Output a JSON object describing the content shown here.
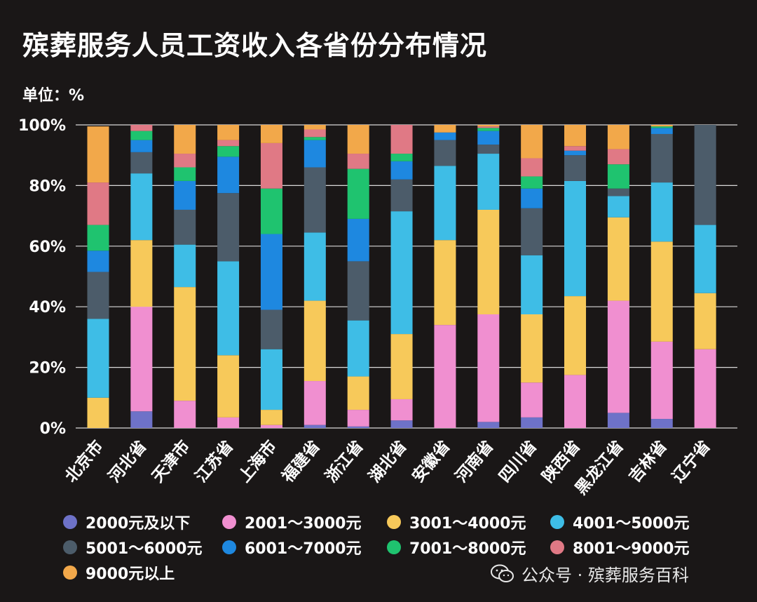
{
  "title": "殡葬服务人员工资收入各省份分布情况",
  "unit_label": "单位：%",
  "watermark": "公众号 · 殡葬服务百科",
  "chart_data": {
    "type": "bar",
    "stacked": true,
    "title": "殡葬服务人员工资收入各省份分布情况",
    "ylim": [
      0,
      100
    ],
    "yticks": [
      "0%",
      "20%",
      "40%",
      "60%",
      "80%",
      "100%"
    ],
    "grid": true,
    "legend_position": "bottom",
    "categories": [
      "北京市",
      "河北省",
      "天津市",
      "江苏省",
      "上海市",
      "福建省",
      "浙江省",
      "湖北省",
      "安徽省",
      "河南省",
      "四川省",
      "陕西省",
      "黑龙江省",
      "吉林省",
      "辽宁省"
    ],
    "series": [
      {
        "name": "2000元及以下",
        "color": "#6e72c8",
        "values": [
          0,
          5.5,
          0,
          0,
          0,
          1,
          0.5,
          2.5,
          0,
          2,
          3.5,
          0,
          5,
          3,
          0
        ]
      },
      {
        "name": "2001～3000元",
        "color": "#f08fd0",
        "values": [
          0,
          34.5,
          9,
          3.5,
          1,
          14.5,
          5.5,
          7,
          34,
          35.5,
          11.5,
          17.5,
          37,
          25.5,
          26
        ]
      },
      {
        "name": "3001～4000元",
        "color": "#f7c95a",
        "values": [
          10,
          22,
          37.5,
          20.5,
          5,
          26.5,
          11,
          21.5,
          28,
          34.5,
          22.5,
          26,
          27.5,
          33,
          18.5
        ]
      },
      {
        "name": "4001～5000元",
        "color": "#3ebde6",
        "values": [
          26,
          22,
          14,
          31,
          20,
          22.5,
          18.5,
          40.5,
          24.5,
          18.5,
          19.5,
          38,
          7,
          19.5,
          22.5
        ]
      },
      {
        "name": "5001～6000元",
        "color": "#4c5c6a",
        "values": [
          15.5,
          7,
          11.5,
          22.5,
          13,
          21.5,
          19.5,
          10.5,
          8.5,
          3,
          15.5,
          8.5,
          2.5,
          16,
          33
        ]
      },
      {
        "name": "6001～7000元",
        "color": "#1e88e0",
        "values": [
          7,
          4,
          9.5,
          12,
          25,
          9,
          14,
          6,
          2.5,
          4.5,
          6.5,
          1.5,
          0,
          2,
          0
        ]
      },
      {
        "name": "7001～8000元",
        "color": "#1fc36f",
        "values": [
          8.5,
          3,
          4.5,
          3.5,
          15,
          1,
          16.5,
          2.5,
          0,
          1,
          4,
          0,
          8,
          0.5,
          0
        ]
      },
      {
        "name": "8001～9000元",
        "color": "#e07985",
        "values": [
          14,
          2,
          4.5,
          2,
          15,
          2.5,
          5,
          9.5,
          0,
          0.5,
          6,
          1.5,
          5,
          0,
          0
        ]
      },
      {
        "name": "9000元以上",
        "color": "#f2a84a",
        "values": [
          18.5,
          0,
          9.5,
          5,
          6,
          1.5,
          9.5,
          0,
          2.5,
          0.5,
          11,
          7,
          8,
          0.5,
          0
        ]
      }
    ]
  }
}
